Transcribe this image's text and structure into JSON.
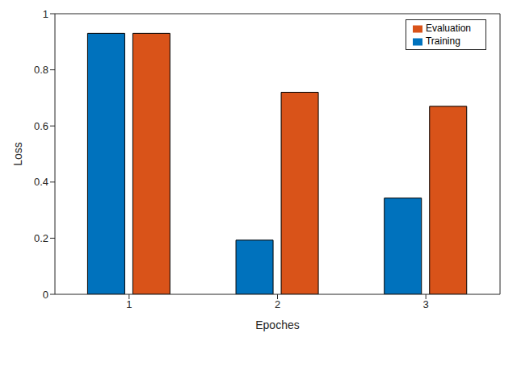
{
  "chart_data": {
    "type": "bar",
    "x_label": "Epoches",
    "y_label": "Loss",
    "categories": [
      "1",
      "2",
      "3"
    ],
    "series": [
      {
        "name": "Training",
        "color": "#0072BD",
        "values": [
          0.93,
          0.193,
          0.343
        ]
      },
      {
        "name": "Evaluation",
        "color": "#D95319",
        "values": [
          0.93,
          0.72,
          0.67
        ]
      }
    ],
    "ylim": [
      0,
      1
    ],
    "yticks": [
      0,
      0.2,
      0.4,
      0.6,
      0.8,
      1
    ],
    "grid": false,
    "legend": "upper right"
  }
}
